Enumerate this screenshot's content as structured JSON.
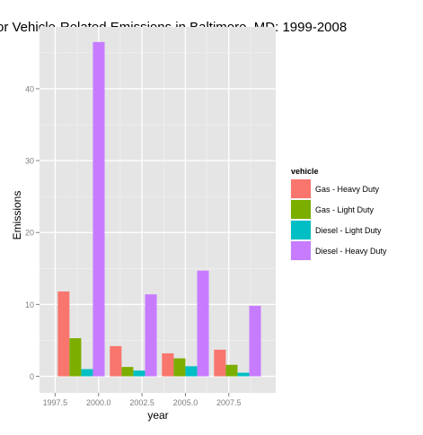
{
  "chart_data": {
    "type": "bar",
    "title": "or Vehicle-Related Emissions in Baltimore, MD: 1999-2008",
    "xlabel": "year",
    "ylabel": "Emissions",
    "xlim": [
      1996.6,
      2010.2
    ],
    "ylim": [
      -2.3,
      48.6
    ],
    "x_ticks": [
      {
        "value": 1997.5,
        "label": "1997.5"
      },
      {
        "value": 2000.0,
        "label": "2000.0"
      },
      {
        "value": 2002.5,
        "label": "2002.5"
      },
      {
        "value": 2005.0,
        "label": "2005.0"
      },
      {
        "value": 2007.5,
        "label": "2007.5"
      }
    ],
    "y_ticks": [
      {
        "value": 0,
        "label": "0"
      },
      {
        "value": 10,
        "label": "10"
      },
      {
        "value": 20,
        "label": "20"
      },
      {
        "value": 30,
        "label": "30"
      },
      {
        "value": 40,
        "label": "40"
      }
    ],
    "grid": true,
    "legend": {
      "title": "vehicle",
      "placement": "right"
    },
    "x": [
      1999,
      2002,
      2005,
      2008
    ],
    "series": [
      {
        "name": "Gas - Heavy Duty",
        "color": "#F8766D",
        "values": [
          11.8,
          4.2,
          3.2,
          3.7
        ]
      },
      {
        "name": "Gas - Light Duty",
        "color": "#7CAE00",
        "values": [
          5.3,
          1.3,
          2.5,
          1.6
        ]
      },
      {
        "name": "Diesel - Light Duty",
        "color": "#00BFC4",
        "values": [
          1.0,
          0.8,
          1.4,
          0.5
        ]
      },
      {
        "name": "Diesel - Heavy Duty",
        "color": "#C77CFF",
        "values": [
          46.5,
          11.4,
          14.7,
          9.8
        ]
      }
    ]
  }
}
